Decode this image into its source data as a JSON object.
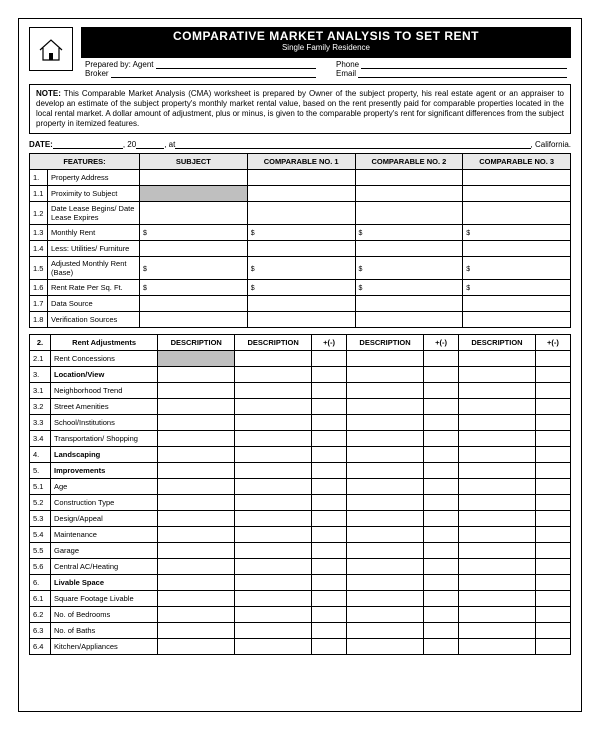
{
  "header": {
    "title": "COMPARATIVE MARKET ANALYSIS TO SET RENT",
    "subtitle": "Single Family Residence",
    "prepared_by_label": "Prepared by: Agent",
    "broker_label": "Broker",
    "phone_label": "Phone",
    "email_label": "Email"
  },
  "note": {
    "bold": "NOTE:",
    "text": " This Comparable Market Analysis (CMA) worksheet is prepared by Owner of the subject property, his real estate agent or an appraiser to develop an estimate of the subject property's monthly market rental value, based on the rent presently paid for comparable properties located in the local rental market. A dollar amount of adjustment, plus or minus, is given to the comparable property's rent for significant differences from the subject property in itemized features."
  },
  "dateline": {
    "date_label": "DATE:",
    "year_prefix": ", 20",
    "at": ", at ",
    "suffix": ", California."
  },
  "t1": {
    "headers": [
      "FEATURES:",
      "SUBJECT",
      "COMPARABLE NO. 1",
      "COMPARABLE NO. 2",
      "COMPARABLE NO. 3"
    ],
    "rows": [
      {
        "n": "1.",
        "label": "Property Address",
        "d": false,
        "shade": false
      },
      {
        "n": "1.1",
        "label": "Proximity to Subject",
        "d": false,
        "shade": true
      },
      {
        "n": "1.2",
        "label": "Date Lease Begins/ Date Lease Expires",
        "d": false,
        "shade": false
      },
      {
        "n": "1.3",
        "label": "Monthly Rent",
        "d": true,
        "shade": false
      },
      {
        "n": "1.4",
        "label": "Less: Utilities/ Furniture",
        "d": false,
        "shade": false
      },
      {
        "n": "1.5",
        "label": "Adjusted Monthly Rent (Base)",
        "d": true,
        "shade": false
      },
      {
        "n": "1.6",
        "label": "Rent Rate Per Sq. Ft.",
        "d": true,
        "shade": false
      },
      {
        "n": "1.7",
        "label": "Data Source",
        "d": false,
        "shade": false
      },
      {
        "n": "1.8",
        "label": "Verification Sources",
        "d": false,
        "shade": false
      }
    ]
  },
  "t2": {
    "header_row": [
      "2.",
      "Rent Adjustments",
      "DESCRIPTION",
      "DESCRIPTION",
      "+(-)",
      "DESCRIPTION",
      "+(-)",
      "DESCRIPTION",
      "+(-)"
    ],
    "rows": [
      {
        "n": "2.1",
        "label": "Rent Concessions",
        "shade": true,
        "bold": false
      },
      {
        "n": "3.",
        "label": "Location/View",
        "shade": false,
        "bold": true
      },
      {
        "n": "3.1",
        "label": "Neighborhood Trend",
        "shade": false,
        "bold": false
      },
      {
        "n": "3.2",
        "label": "Street Amenities",
        "shade": false,
        "bold": false
      },
      {
        "n": "3.3",
        "label": "School/Institutions",
        "shade": false,
        "bold": false
      },
      {
        "n": "3.4",
        "label": "Transportation/ Shopping",
        "shade": false,
        "bold": false
      },
      {
        "n": "4.",
        "label": "Landscaping",
        "shade": false,
        "bold": true
      },
      {
        "n": "5.",
        "label": "Improvements",
        "shade": false,
        "bold": true
      },
      {
        "n": "5.1",
        "label": "Age",
        "shade": false,
        "bold": false
      },
      {
        "n": "5.2",
        "label": "Construction Type",
        "shade": false,
        "bold": false
      },
      {
        "n": "5.3",
        "label": "Design/Appeal",
        "shade": false,
        "bold": false
      },
      {
        "n": "5.4",
        "label": "Maintenance",
        "shade": false,
        "bold": false
      },
      {
        "n": "5.5",
        "label": "Garage",
        "shade": false,
        "bold": false
      },
      {
        "n": "5.6",
        "label": "Central AC/Heating",
        "shade": false,
        "bold": false
      },
      {
        "n": "6.",
        "label": "Livable Space",
        "shade": false,
        "bold": true
      },
      {
        "n": "6.1",
        "label": "Square Footage Livable",
        "shade": false,
        "bold": false
      },
      {
        "n": "6.2",
        "label": "No. of Bedrooms",
        "shade": false,
        "bold": false
      },
      {
        "n": "6.3",
        "label": "No. of Baths",
        "shade": false,
        "bold": false
      },
      {
        "n": "6.4",
        "label": "Kitchen/Appliances",
        "shade": false,
        "bold": false
      }
    ]
  },
  "colors": {
    "shade": "#bfbfbf",
    "header_bg": "#e8e8e8"
  }
}
